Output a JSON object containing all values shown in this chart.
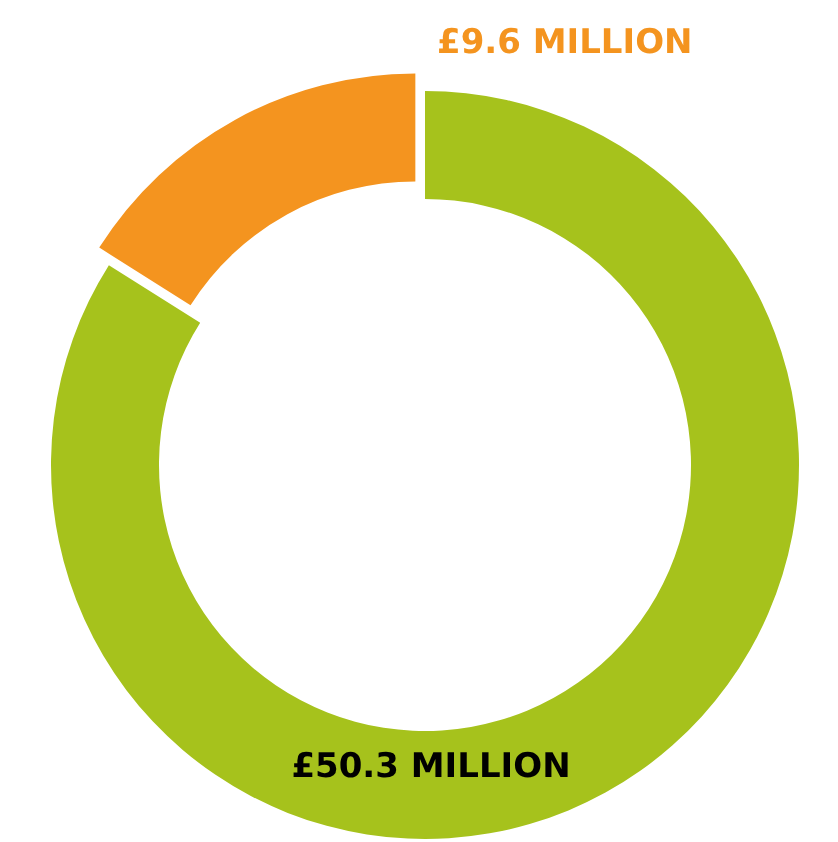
{
  "chart_data": {
    "type": "donut",
    "categories": [
      null,
      null
    ],
    "values": [
      50.3,
      9.6
    ],
    "colors": [
      "#a6c21c",
      "#f4941f"
    ],
    "value_labels": [
      "£50.3 MILLION",
      "£9.6 MILLION"
    ]
  }
}
